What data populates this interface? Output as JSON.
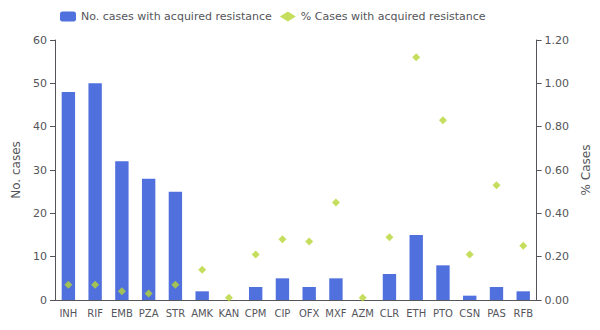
{
  "chart_data": {
    "type": "bar",
    "categories": [
      "INH",
      "RIF",
      "EMB",
      "PZA",
      "STR",
      "AMK",
      "KAN",
      "CPM",
      "CIP",
      "OFX",
      "MXF",
      "AZM",
      "CLR",
      "ETH",
      "PTO",
      "CSN",
      "PAS",
      "RFB"
    ],
    "series": [
      {
        "name": "No. cases with acquired resistance",
        "type": "bar",
        "values": [
          48,
          50,
          32,
          28,
          25,
          2,
          0,
          3,
          5,
          3,
          5,
          0,
          6,
          15,
          8,
          1,
          3,
          2
        ]
      },
      {
        "name": "% Cases with acquired resistance",
        "type": "scatter",
        "marker": "diamond",
        "axis": "y2",
        "values": [
          0.07,
          0.07,
          0.04,
          0.03,
          0.07,
          0.14,
          0.01,
          0.21,
          0.28,
          0.27,
          0.45,
          0.01,
          0.29,
          1.12,
          0.83,
          0.21,
          0.53,
          0.25
        ]
      }
    ],
    "ylabel": "No. cases",
    "y2label": "% Cases",
    "ylim": [
      0,
      60
    ],
    "yticks": [
      0,
      10,
      20,
      30,
      40,
      50,
      60
    ],
    "y2lim": [
      0,
      1.2
    ],
    "y2ticks": [
      {
        "value": 0,
        "label": "0.00"
      },
      {
        "value": 0.2,
        "label": "0.20"
      },
      {
        "value": 0.4,
        "label": "0.40"
      },
      {
        "value": 0.6,
        "label": "0.60"
      },
      {
        "value": 0.8,
        "label": "0.80"
      },
      {
        "value": 1.0,
        "label": "1.00"
      },
      {
        "value": 1.2,
        "label": "1.20"
      }
    ],
    "legend": "upper left",
    "grid": false
  }
}
